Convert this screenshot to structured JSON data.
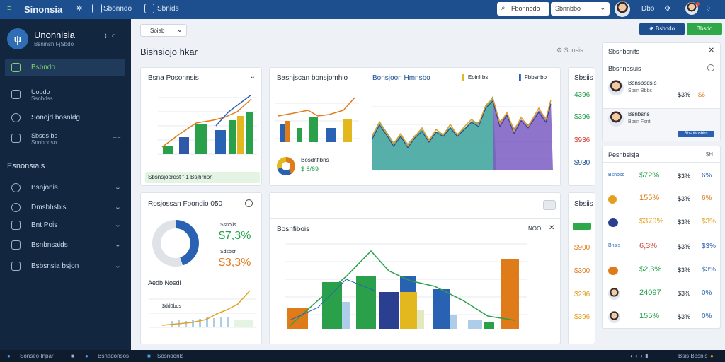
{
  "header": {
    "app_name": "Sinonsia",
    "tab1": "Sbonndo",
    "tab2": "Sbnids",
    "search_value": "Fbonnodo",
    "select_value": "Sbnnbbo",
    "user_label": "Dbo"
  },
  "sidebar": {
    "title": "Unonnisia",
    "subtitle": "Bsninsh FjSbdo",
    "items": [
      {
        "label": "Bsbndo"
      },
      {
        "label": "Uobdo",
        "sub": "Ssnbdss"
      },
      {
        "label": "Sonojd bosnldg"
      },
      {
        "label": "Sbsds bs",
        "sub": "Snnbodso"
      }
    ],
    "section": "Esnonsiais",
    "sub_items": [
      {
        "label": "Bsnjonis"
      },
      {
        "label": "Dmsbhsbis"
      },
      {
        "label": "Bnt Pois"
      },
      {
        "label": "Bsnbnsaids"
      },
      {
        "label": "Bsbsnsia bsjon"
      }
    ]
  },
  "toolbar": {
    "filter": "Soiab",
    "btn_primary": "Bsbndo",
    "btn_green": "Bbsdo"
  },
  "page": {
    "title": "Bishsiojo hkar",
    "settings": "Sonsis"
  },
  "cards": {
    "c1_title": "Bsna Posonnsis",
    "c1_footer": "Sbsnsjoordst f-1 Bsjhrnon",
    "c2_title": "Basnjscan bonsjomhio",
    "c2_legend_a": "Bosdnfibns",
    "c2_legend_b": "$ 8/69",
    "c3_title": "Bonsjoon Hmnsbo",
    "c3_legend_a": "Eoinl bs",
    "c3_legend_b": "Fbbsnbo",
    "c4_title": "Rosjossan Foondio 050",
    "c4_value1": "$7,3%",
    "c4_value2": "$3,3%",
    "c4_label1": "Ssnojis",
    "c4_label2": "Sdsbsr",
    "c4_sub": "Aedb Nosdi",
    "c4_mini": "$dd0bds",
    "c5_title": "Bosnfibois",
    "c5_ctrl": "NOO",
    "c6_title": "Sbsiis",
    "c6_values": [
      "4396",
      "$396",
      "$936",
      "$930"
    ],
    "c6_values2": [
      "$900",
      "$300",
      "$296",
      "$396"
    ]
  },
  "right_panel": {
    "title": "Sbsnbsnits",
    "section": "Bbsnnbsuis",
    "contacts": [
      {
        "name": "Bsnsbsdsis",
        "sub": "Sbsn Bbbs",
        "v1": "$3%",
        "v2": "$6"
      },
      {
        "name": "Bsnbsris",
        "sub": "Bbsn Fsnt",
        "v1": "",
        "v2": ""
      }
    ],
    "btn": "Bbsnbosbbs",
    "table_title": "Pesnbsisja",
    "table_icon": "$H",
    "rows": [
      {
        "label": "Bsnbsd",
        "a": "$72%",
        "b": "$3%",
        "c": "6%"
      },
      {
        "label": "",
        "a": "155%",
        "b": "$3%",
        "c": "6%"
      },
      {
        "label": "",
        "a": "$379%",
        "b": "$3%",
        "c": "$3%"
      },
      {
        "label": "Bnsis",
        "a": "6,3%",
        "b": "$3%",
        "c": "$3%"
      },
      {
        "label": "",
        "a": "$2,3%",
        "b": "$3%",
        "c": "$3%"
      },
      {
        "label": "",
        "a": "24097",
        "b": "$3%",
        "c": "0%"
      },
      {
        "label": "",
        "a": "155%",
        "b": "$3%",
        "c": "0%"
      }
    ]
  },
  "taskbar": {
    "item1": "Sonseo Inpar",
    "item2": "Bsnadonsos",
    "item3": "Sosnoonls",
    "tray": "Bsis Bbsnis"
  },
  "colors": {
    "green": "#22a04a",
    "blue": "#2a62b3",
    "orange": "#e07b1a",
    "yellow": "#e3b81f",
    "red": "#d0443a"
  }
}
